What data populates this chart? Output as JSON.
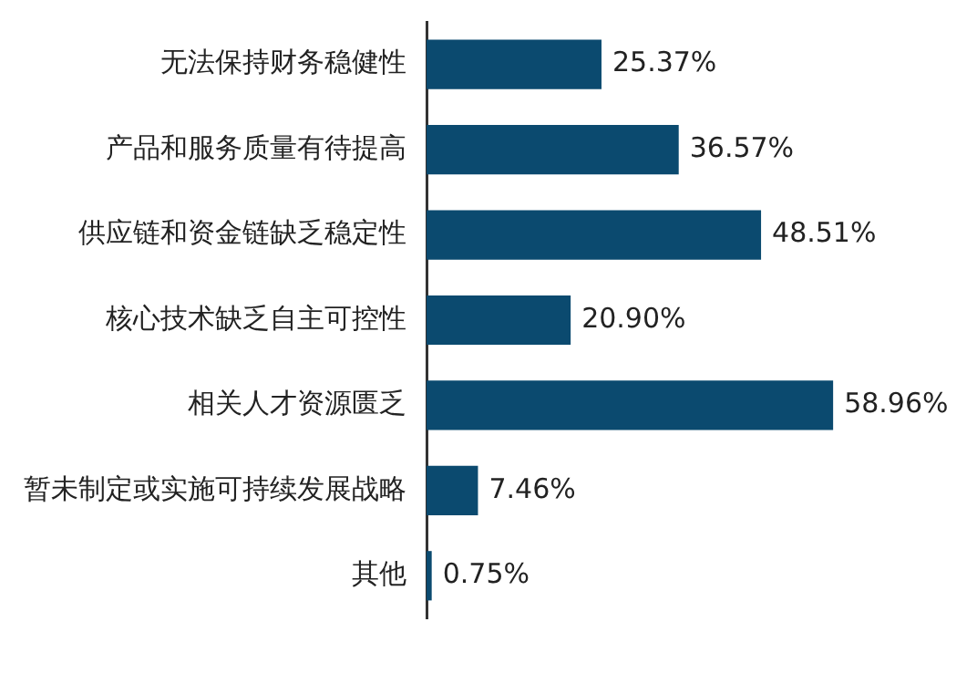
{
  "chart_data": {
    "type": "bar",
    "orientation": "horizontal",
    "categories": [
      "无法保持财务稳健性",
      "产品和服务质量有待提高",
      "供应链和资金链缺乏稳定性",
      "核心技术缺乏自主可控性",
      "相关人才资源匮乏",
      "暂未制定或实施可持续发展战略",
      "其他"
    ],
    "values": [
      25.37,
      36.57,
      48.51,
      20.9,
      58.96,
      7.46,
      0.75
    ],
    "value_labels": [
      "25.37%",
      "36.57%",
      "48.51%",
      "20.90%",
      "58.96%",
      "7.46%",
      "0.75%"
    ],
    "color": "#0b4a6f"
  }
}
